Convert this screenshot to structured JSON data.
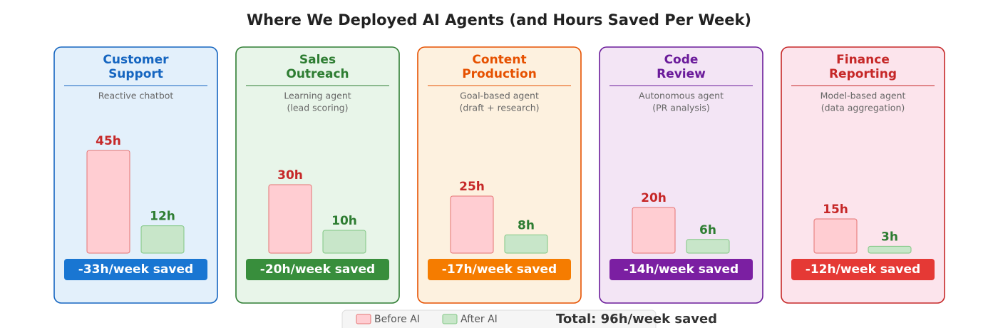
{
  "chart_data": {
    "type": "bar",
    "title": "Where We Deployed AI Agents (and Hours Saved Per Week)",
    "categories": [
      [
        "Customer",
        "Support"
      ],
      [
        "Sales",
        "Outreach"
      ],
      [
        "Content",
        "Production"
      ],
      [
        "Code",
        "Review"
      ],
      [
        "Finance",
        "Reporting"
      ]
    ],
    "subtitles": [
      [
        "Reactive chatbot"
      ],
      [
        "Learning agent",
        "(lead scoring)"
      ],
      [
        "Goal-based agent",
        "(draft + research)"
      ],
      [
        "Autonomous agent",
        "(PR analysis)"
      ],
      [
        "Model-based agent",
        "(data aggregation)"
      ]
    ],
    "annotations": [
      "-33h/week saved",
      "-20h/week saved",
      "-17h/week saved",
      "-14h/week saved",
      "-12h/week saved"
    ],
    "panel_colors": [
      {
        "accent": "#1565c0",
        "fill": "#e3f0fb",
        "badge": "#1976d2"
      },
      {
        "accent": "#2e7d32",
        "fill": "#e8f5e9",
        "badge": "#388e3c"
      },
      {
        "accent": "#e65100",
        "fill": "#fdf1df",
        "badge": "#f57c00"
      },
      {
        "accent": "#6a1b9a",
        "fill": "#f3e5f5",
        "badge": "#7b1fa2"
      },
      {
        "accent": "#c62828",
        "fill": "#fce4ec",
        "badge": "#e53935"
      }
    ],
    "series": [
      {
        "name": "Before AI",
        "color": "#ffcdd2",
        "edge": "#e57373",
        "label_color": "#c62828",
        "values": [
          45,
          30,
          25,
          20,
          15
        ],
        "value_labels": [
          "45h",
          "30h",
          "25h",
          "20h",
          "15h"
        ]
      },
      {
        "name": "After AI",
        "color": "#c8e6c9",
        "edge": "#81c784",
        "label_color": "#2e7d32",
        "values": [
          12,
          10,
          8,
          6,
          3
        ],
        "value_labels": [
          "12h",
          "10h",
          "8h",
          "6h",
          "3h"
        ]
      }
    ],
    "ylim": [
      0,
      60
    ],
    "total": "Total: 96h/week saved"
  }
}
